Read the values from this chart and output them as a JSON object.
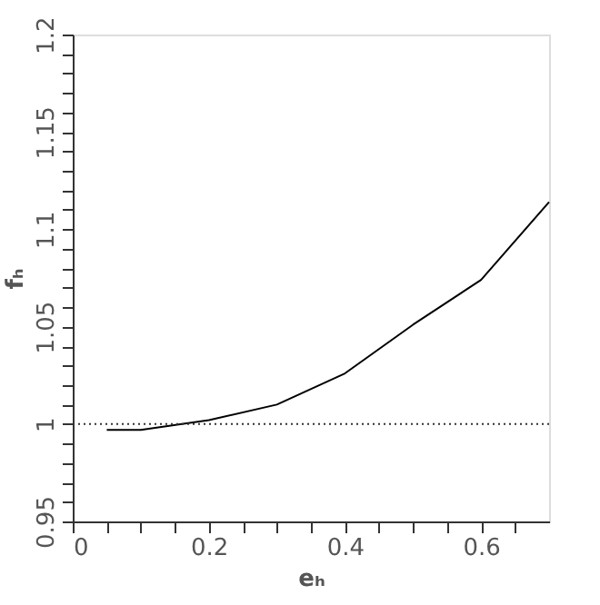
{
  "chart_data": {
    "type": "line",
    "xlabel": "eₕ",
    "ylabel": "fₕ",
    "x": [
      0.05,
      0.1,
      0.2,
      0.3,
      0.4,
      0.5,
      0.6,
      0.7
    ],
    "series": [
      {
        "color": "#000000",
        "values": [
          0.997,
          0.997,
          1.002,
          1.01,
          1.026,
          1.051,
          1.074,
          1.114
        ]
      }
    ],
    "xlim": [
      0,
      0.7
    ],
    "ylim": [
      0.95,
      1.2
    ],
    "xticks": [
      0,
      {
        "value": 0.05,
        "label": null
      },
      {
        "value": 0.1,
        "label": null
      },
      {
        "value": 0.15,
        "label": null
      },
      0.2,
      {
        "value": 0.25,
        "label": null
      },
      {
        "value": 0.3,
        "label": null
      },
      {
        "value": 0.35,
        "label": null
      },
      0.4,
      {
        "value": 0.45,
        "label": null
      },
      {
        "value": 0.5,
        "label": null
      },
      {
        "value": 0.55,
        "label": null
      },
      0.6,
      {
        "value": 0.65,
        "label": null
      }
    ],
    "yticks": [
      0.95,
      {
        "value": 0.96,
        "label": null
      },
      {
        "value": 0.97,
        "label": null
      },
      {
        "value": 0.98,
        "label": null
      },
      {
        "value": 0.99,
        "label": null
      },
      1,
      {
        "value": 1.01,
        "label": null
      },
      {
        "value": 1.02,
        "label": null
      },
      {
        "value": 1.03,
        "label": null
      },
      {
        "value": 1.04,
        "label": null
      },
      1.05,
      {
        "value": 1.06,
        "label": null
      },
      {
        "value": 1.07,
        "label": null
      },
      {
        "value": 1.08,
        "label": null
      },
      {
        "value": 1.09,
        "label": null
      },
      1.1,
      {
        "value": 1.11,
        "label": null
      },
      {
        "value": 1.12,
        "label": null
      },
      {
        "value": 1.13,
        "label": null
      },
      {
        "value": 1.14,
        "label": null
      },
      1.15,
      {
        "value": 1.16,
        "label": null
      },
      {
        "value": 1.17,
        "label": null
      },
      {
        "value": 1.18,
        "label": null
      },
      {
        "value": 1.19,
        "label": null
      },
      1.2
    ],
    "ref_lines": [
      {
        "axis": "y",
        "value": 1,
        "line_style": "dotted"
      }
    ],
    "grid": false,
    "marker": "none",
    "line_style": "solid"
  }
}
